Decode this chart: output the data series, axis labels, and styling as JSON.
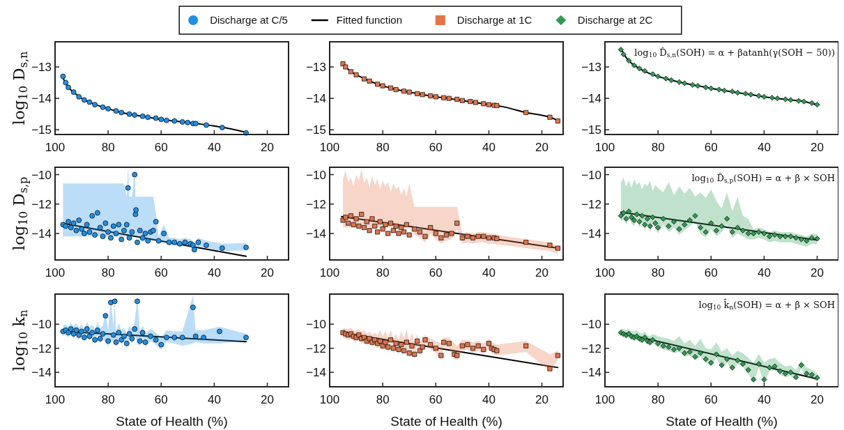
{
  "chart_data": [
    {
      "type": "scatter",
      "ylabel": "log$_{10}$ D$_{s,n}$",
      "xlim": [
        100,
        12
      ],
      "ylim": [
        -15.15,
        -12.2
      ],
      "xticks": [
        100,
        80,
        60,
        40,
        20
      ],
      "yticks": [
        -13,
        -14,
        -15
      ],
      "legend": "top",
      "series": [
        {
          "name": "Discharge at C/5",
          "type": "scatter",
          "marker": "circle",
          "color": "#1f8fe5",
          "x": [
            97,
            96,
            95,
            93,
            91,
            89,
            87,
            85,
            82,
            80,
            77,
            75,
            72,
            70,
            67,
            65,
            62,
            60,
            58,
            55,
            52,
            50,
            48,
            47,
            43,
            37,
            28
          ],
          "values": [
            -13.3,
            -13.5,
            -13.65,
            -13.8,
            -13.95,
            -14.05,
            -14.12,
            -14.2,
            -14.28,
            -14.33,
            -14.4,
            -14.45,
            -14.5,
            -14.53,
            -14.57,
            -14.6,
            -14.63,
            -14.67,
            -14.7,
            -14.72,
            -14.75,
            -14.77,
            -14.8,
            -14.8,
            -14.85,
            -14.93,
            -15.1
          ]
        },
        {
          "name": "Fitted function",
          "type": "line",
          "marker": "none",
          "line_style": "solid",
          "color": "#000000",
          "x": [
            97,
            95,
            93,
            90,
            87,
            84,
            80,
            75,
            70,
            65,
            60,
            55,
            50,
            45,
            40,
            35,
            28
          ],
          "values": [
            -13.35,
            -13.65,
            -13.8,
            -14.0,
            -14.12,
            -14.22,
            -14.33,
            -14.45,
            -14.53,
            -14.6,
            -14.67,
            -14.72,
            -14.77,
            -14.82,
            -14.88,
            -14.95,
            -15.08
          ]
        }
      ]
    },
    {
      "type": "scatter",
      "xlim": [
        100,
        12
      ],
      "ylim": [
        -15.15,
        -12.2
      ],
      "xticks": [
        100,
        80,
        60,
        40,
        20
      ],
      "yticks": [
        -13,
        -14,
        -15
      ],
      "legend": "top",
      "series": [
        {
          "name": "Discharge at 1C",
          "type": "scatter",
          "marker": "square",
          "color": "#e5744a",
          "x": [
            95,
            94,
            92,
            90,
            87,
            85,
            82,
            80,
            77,
            75,
            72,
            70,
            67,
            65,
            62,
            60,
            57,
            55,
            52,
            50,
            47,
            45,
            42,
            40,
            38,
            37,
            26,
            17,
            14
          ],
          "values": [
            -12.9,
            -13.0,
            -13.15,
            -13.25,
            -13.38,
            -13.45,
            -13.55,
            -13.6,
            -13.67,
            -13.72,
            -13.77,
            -13.8,
            -13.85,
            -13.88,
            -13.92,
            -13.95,
            -13.98,
            -14.0,
            -14.03,
            -14.07,
            -14.1,
            -14.13,
            -14.17,
            -14.2,
            -14.22,
            -14.23,
            -14.45,
            -14.6,
            -14.72
          ]
        },
        {
          "name": "Fitted function",
          "type": "line",
          "marker": "none",
          "line_style": "solid",
          "color": "#000000",
          "x": [
            95,
            92,
            88,
            84,
            80,
            75,
            70,
            65,
            60,
            55,
            50,
            45,
            40,
            35,
            26,
            17,
            14
          ],
          "values": [
            -12.9,
            -13.15,
            -13.33,
            -13.48,
            -13.6,
            -13.72,
            -13.8,
            -13.88,
            -13.95,
            -14.0,
            -14.07,
            -14.13,
            -14.2,
            -14.26,
            -14.45,
            -14.6,
            -14.7
          ]
        }
      ]
    },
    {
      "type": "scatter",
      "xlim": [
        100,
        12
      ],
      "ylim": [
        -15.15,
        -12.2
      ],
      "xticks": [
        100,
        80,
        60,
        40,
        20
      ],
      "yticks": [
        -13,
        -14,
        -15
      ],
      "legend": "top",
      "annotations": [
        "log$_{10}$ D̂$_{s,n}$(SOH) = α + βatanh(γ(SOH − 50))"
      ],
      "series": [
        {
          "name": "Discharge at 2C",
          "type": "scatter",
          "marker": "diamond",
          "color": "#2f9a52",
          "x": [
            94,
            93,
            91,
            89,
            87,
            85,
            82,
            80,
            77,
            75,
            72,
            70,
            67,
            65,
            62,
            60,
            57,
            55,
            52,
            50,
            47,
            45,
            42,
            40,
            37,
            35,
            32,
            30,
            27,
            25,
            22,
            20
          ],
          "values": [
            -12.45,
            -12.6,
            -12.8,
            -12.95,
            -13.05,
            -13.13,
            -13.23,
            -13.3,
            -13.37,
            -13.42,
            -13.48,
            -13.52,
            -13.57,
            -13.6,
            -13.65,
            -13.68,
            -13.72,
            -13.75,
            -13.78,
            -13.82,
            -13.85,
            -13.88,
            -13.92,
            -13.95,
            -13.98,
            -14.0,
            -14.03,
            -14.05,
            -14.08,
            -14.1,
            -14.15,
            -14.2
          ]
        },
        {
          "name": "Fitted function",
          "type": "line",
          "marker": "none",
          "line_style": "solid",
          "color": "#000000",
          "x": [
            94,
            92,
            90,
            87,
            84,
            80,
            75,
            70,
            65,
            60,
            55,
            50,
            45,
            40,
            35,
            30,
            25,
            20
          ],
          "values": [
            -12.42,
            -12.7,
            -12.88,
            -13.05,
            -13.18,
            -13.3,
            -13.42,
            -13.52,
            -13.6,
            -13.68,
            -13.75,
            -13.82,
            -13.88,
            -13.95,
            -14.0,
            -14.05,
            -14.1,
            -14.2
          ]
        }
      ]
    },
    {
      "type": "scatter",
      "ylabel": "log$_{10}$ D$_{s,p}$",
      "xlim": [
        100,
        12
      ],
      "ylim": [
        -15.8,
        -9.5
      ],
      "xticks": [
        100,
        80,
        60,
        40,
        20
      ],
      "yticks": [
        -10,
        -12,
        -14
      ],
      "legend": "top",
      "series": [
        {
          "name": "Discharge at C/5",
          "type": "scatter",
          "marker": "circle",
          "color": "#1f8fe5",
          "x": [
            97,
            96,
            95,
            94,
            93,
            92,
            91,
            90,
            89,
            88,
            87,
            86,
            85,
            84,
            83,
            82,
            81,
            80,
            79,
            78,
            77,
            76,
            75,
            74,
            73,
            72.5,
            72,
            71,
            70,
            69.7,
            69.5,
            69,
            68,
            67,
            66,
            65,
            64,
            63,
            62,
            61,
            59,
            57,
            55,
            53,
            51,
            49,
            48,
            47.5,
            46,
            43,
            37,
            28
          ],
          "values": [
            -13.4,
            -13.5,
            -13.2,
            -13.6,
            -13.3,
            -13.8,
            -13.1,
            -13.7,
            -14.0,
            -13.4,
            -13.9,
            -12.8,
            -14.1,
            -12.6,
            -13.6,
            -14.2,
            -13.3,
            -13.9,
            -14.3,
            -13.5,
            -14.0,
            -13.4,
            -14.4,
            -13.8,
            -13.4,
            -10.9,
            -14.3,
            -13.9,
            -10.0,
            -12.7,
            -12.4,
            -14.6,
            -13.8,
            -14.3,
            -14.0,
            -14.5,
            -13.9,
            -13.8,
            -13.2,
            -14.5,
            -14.0,
            -14.6,
            -14.6,
            -14.7,
            -14.6,
            -14.7,
            -14.8,
            -15.1,
            -14.6,
            -14.8,
            -15.0,
            -14.95
          ],
          "upper": [
            -10.6,
            -10.6,
            -10.6,
            -10.6,
            -10.6,
            -10.6,
            -10.6,
            -10.6,
            -10.6,
            -10.6,
            -10.6,
            -10.6,
            -10.6,
            -10.6,
            -10.6,
            -10.6,
            -10.6,
            -10.6,
            -10.6,
            -10.6,
            -10.6,
            -10.6,
            -10.6,
            -10.6,
            -11.5,
            -9.5,
            -11.5,
            -11.5,
            -9.5,
            -11.5,
            -11.5,
            -11.5,
            -11.5,
            -11.5,
            -11.5,
            -11.5,
            -11.5,
            -11.5,
            -12.6,
            -14.2,
            -13.4,
            -14.3,
            -14.3,
            -14.4,
            -14.3,
            -14.4,
            -14.5,
            -14.7,
            -14.3,
            -14.5,
            -14.7,
            -14.65
          ],
          "lower": [
            -14.2,
            -14.2,
            -14.2,
            -14.2,
            -14.2,
            -14.2,
            -14.2,
            -14.2,
            -14.2,
            -14.2,
            -14.2,
            -14.2,
            -14.2,
            -14.2,
            -14.2,
            -14.2,
            -14.2,
            -14.2,
            -14.2,
            -14.2,
            -14.2,
            -14.2,
            -14.2,
            -14.2,
            -14.2,
            -14.2,
            -14.2,
            -14.2,
            -14.2,
            -14.2,
            -14.2,
            -14.2,
            -14.4,
            -14.6,
            -14.5,
            -14.7,
            -14.5,
            -14.5,
            -14.5,
            -14.7,
            -14.6,
            -14.8,
            -14.8,
            -14.9,
            -14.8,
            -14.9,
            -15.0,
            -15.2,
            -14.9,
            -15.0,
            -15.2,
            -15.15
          ]
        },
        {
          "name": "Fitted function",
          "type": "line",
          "marker": "none",
          "line_style": "solid",
          "color": "#000000",
          "x": [
            97.5,
            28
          ],
          "values": [
            -13.3,
            -15.55
          ]
        }
      ]
    },
    {
      "type": "scatter",
      "xlim": [
        100,
        12
      ],
      "ylim": [
        -15.8,
        -9.5
      ],
      "xticks": [
        100,
        80,
        60,
        40,
        20
      ],
      "yticks": [
        -10,
        -12,
        -14
      ],
      "legend": "top",
      "series": [
        {
          "name": "Discharge at 1C",
          "type": "scatter",
          "marker": "square",
          "color": "#e5744a",
          "x": [
            95,
            94,
            93,
            92,
            91,
            90,
            89,
            88,
            87,
            86,
            85,
            84,
            83,
            82,
            81,
            80,
            79,
            78,
            77,
            76,
            75,
            74,
            73,
            72,
            71,
            70,
            68,
            66,
            64,
            62,
            60,
            58,
            56,
            54,
            52,
            50,
            48,
            46,
            44,
            42,
            40,
            38,
            37,
            26,
            17,
            14
          ],
          "values": [
            -13.1,
            -12.9,
            -13.3,
            -12.8,
            -13.4,
            -13.0,
            -13.5,
            -12.7,
            -13.6,
            -13.2,
            -13.8,
            -13.0,
            -13.5,
            -13.9,
            -13.2,
            -13.7,
            -13.4,
            -14.0,
            -13.3,
            -13.8,
            -13.5,
            -14.0,
            -13.6,
            -13.9,
            -13.4,
            -14.1,
            -13.7,
            -13.9,
            -14.2,
            -13.6,
            -14.0,
            -14.3,
            -14.1,
            -14.0,
            -13.3,
            -14.3,
            -14.2,
            -14.3,
            -14.2,
            -14.2,
            -14.3,
            -14.3,
            -14.35,
            -14.6,
            -14.8,
            -15.0
          ],
          "upper": [
            -10.3,
            -9.7,
            -10.5,
            -10.2,
            -10.8,
            -10.0,
            -10.4,
            -9.6,
            -10.6,
            -10.2,
            -10.9,
            -10.1,
            -10.7,
            -10.3,
            -11.0,
            -10.4,
            -10.8,
            -10.5,
            -11.2,
            -10.6,
            -11.0,
            -10.8,
            -11.4,
            -10.9,
            -11.5,
            -10.6,
            -12.2,
            -12.2,
            -12.2,
            -12.2,
            -12.2,
            -12.2,
            -12.2,
            -12.2,
            -12.2,
            -14.0,
            -13.9,
            -14.0,
            -13.9,
            -13.9,
            -14.0,
            -14.0,
            -14.1,
            -14.4,
            -14.6,
            -14.85
          ],
          "lower": [
            -13.6,
            -13.6,
            -13.6,
            -13.6,
            -13.6,
            -13.6,
            -13.6,
            -13.6,
            -13.6,
            -13.6,
            -13.6,
            -13.6,
            -13.6,
            -13.6,
            -13.6,
            -13.6,
            -13.6,
            -13.6,
            -13.6,
            -13.6,
            -13.6,
            -13.6,
            -13.6,
            -13.6,
            -13.6,
            -13.6,
            -14.1,
            -14.3,
            -14.6,
            -14.0,
            -14.4,
            -14.7,
            -14.5,
            -14.4,
            -13.7,
            -14.7,
            -14.6,
            -14.7,
            -14.6,
            -14.6,
            -14.7,
            -14.7,
            -14.75,
            -15.0,
            -15.2,
            -15.4
          ]
        },
        {
          "name": "Fitted function",
          "type": "line",
          "marker": "none",
          "line_style": "solid",
          "color": "#000000",
          "x": [
            95.5,
            14
          ],
          "values": [
            -12.85,
            -15.0
          ]
        }
      ]
    },
    {
      "type": "scatter",
      "xlim": [
        100,
        12
      ],
      "ylim": [
        -15.8,
        -9.5
      ],
      "xticks": [
        100,
        80,
        60,
        40,
        20
      ],
      "yticks": [
        -10,
        -12,
        -14
      ],
      "legend": "top",
      "annotations": [
        "log$_{10}$ D̂$_{s,p}$(SOH) = α + β × SOH"
      ],
      "series": [
        {
          "name": "Discharge at 2C",
          "type": "scatter",
          "marker": "diamond",
          "color": "#2f9a52",
          "x": [
            94,
            93,
            92,
            91,
            90,
            89,
            88,
            87,
            86,
            85,
            84,
            83,
            82,
            81,
            80,
            78,
            76,
            74,
            72,
            70,
            68,
            66,
            64,
            62,
            60,
            58,
            56,
            54,
            52,
            50,
            48,
            46,
            44,
            42,
            40,
            38,
            36,
            34,
            32,
            30,
            28,
            26,
            24,
            22,
            20
          ],
          "values": [
            -12.8,
            -12.6,
            -13.0,
            -12.5,
            -12.9,
            -13.1,
            -12.7,
            -13.2,
            -12.8,
            -13.4,
            -13.0,
            -13.5,
            -12.9,
            -13.3,
            -13.6,
            -13.0,
            -13.5,
            -13.2,
            -13.7,
            -13.4,
            -13.1,
            -12.8,
            -13.6,
            -13.9,
            -13.3,
            -13.8,
            -13.5,
            -13.0,
            -13.9,
            -13.6,
            -13.8,
            -14.0,
            -14.0,
            -13.9,
            -14.0,
            -14.2,
            -14.1,
            -14.2,
            -14.2,
            -14.2,
            -14.3,
            -14.4,
            -14.5,
            -14.3,
            -14.35
          ],
          "upper": [
            -10.6,
            -10.2,
            -10.8,
            -10.4,
            -10.9,
            -10.3,
            -10.7,
            -10.5,
            -11.0,
            -10.6,
            -10.8,
            -10.4,
            -11.1,
            -10.7,
            -10.9,
            -11.2,
            -10.5,
            -11.4,
            -10.8,
            -11.3,
            -10.9,
            -11.5,
            -11.2,
            -11.6,
            -11.0,
            -11.8,
            -12.3,
            -11.2,
            -12.5,
            -11.5,
            -12.8,
            -13.0,
            -13.7,
            -13.6,
            -13.7,
            -13.9,
            -13.8,
            -13.9,
            -13.9,
            -13.9,
            -14.0,
            -14.1,
            -14.2,
            -14.0,
            -14.05
          ],
          "lower": [
            -13.2,
            -13.0,
            -13.4,
            -12.9,
            -13.3,
            -13.5,
            -13.1,
            -13.6,
            -13.2,
            -13.8,
            -13.4,
            -13.9,
            -13.3,
            -13.7,
            -14.0,
            -13.4,
            -13.9,
            -13.6,
            -14.1,
            -13.8,
            -13.5,
            -13.2,
            -14.0,
            -14.3,
            -13.7,
            -14.2,
            -13.9,
            -13.4,
            -14.3,
            -14.0,
            -14.2,
            -14.4,
            -14.4,
            -14.3,
            -14.4,
            -14.6,
            -14.5,
            -14.6,
            -14.6,
            -14.6,
            -14.7,
            -14.8,
            -14.9,
            -14.7,
            -14.75
          ]
        },
        {
          "name": "Fitted function",
          "type": "line",
          "marker": "none",
          "line_style": "solid",
          "color": "#000000",
          "x": [
            94,
            20
          ],
          "values": [
            -12.55,
            -14.45
          ]
        }
      ]
    },
    {
      "type": "scatter",
      "ylabel": "log$_{10}$ k$_{n}$",
      "xlabel": "State of Health (%)",
      "xlim": [
        100,
        12
      ],
      "ylim": [
        -15.2,
        -7.5
      ],
      "xticks": [
        100,
        80,
        60,
        40,
        20
      ],
      "yticks": [
        -10,
        -12,
        -14
      ],
      "legend": "top",
      "series": [
        {
          "name": "Discharge at C/5",
          "type": "scatter",
          "marker": "circle",
          "color": "#1f8fe5",
          "x": [
            97,
            96,
            95,
            94,
            93,
            92,
            91,
            90,
            89,
            88,
            87,
            86,
            85,
            84,
            83,
            82,
            81,
            80,
            79,
            78,
            77.5,
            77,
            76,
            75,
            74,
            73,
            72,
            71,
            70,
            69,
            68,
            67,
            66,
            64,
            62,
            60,
            58,
            55,
            52,
            48,
            47,
            44,
            38,
            28
          ],
          "values": [
            -10.6,
            -10.5,
            -10.7,
            -10.4,
            -10.8,
            -10.5,
            -10.9,
            -10.6,
            -11.1,
            -10.4,
            -11.0,
            -10.7,
            -11.3,
            -10.5,
            -11.2,
            -10.8,
            -9.3,
            -11.4,
            -8.2,
            -10.9,
            -8.1,
            -11.5,
            -10.7,
            -11.3,
            -11.0,
            -11.6,
            -10.8,
            -11.2,
            -10.4,
            -8.1,
            -11.4,
            -10.7,
            -11.5,
            -11.0,
            -11.3,
            -11.7,
            -11.1,
            -11.1,
            -11.1,
            -8.6,
            -11.0,
            -11.1,
            -10.6,
            -11.1
          ],
          "upper": [
            -10.1,
            -10.0,
            -10.2,
            -9.9,
            -10.2,
            -9.9,
            -10.3,
            -10.0,
            -10.4,
            -9.8,
            -10.3,
            -10.0,
            -10.5,
            -9.8,
            -10.4,
            -10.1,
            -9.0,
            -10.5,
            -7.9,
            -10.1,
            -7.8,
            -10.6,
            -9.9,
            -10.5,
            -10.3,
            -10.8,
            -10.1,
            -10.5,
            -9.8,
            -7.8,
            -10.6,
            -10.1,
            -10.8,
            -10.4,
            -10.7,
            -11.1,
            -10.5,
            -10.6,
            -10.6,
            -7.6,
            -10.5,
            -10.5,
            -10.2,
            -10.8
          ],
          "lower": [
            -11.0,
            -10.9,
            -11.1,
            -10.8,
            -11.2,
            -10.9,
            -11.3,
            -11.0,
            -11.5,
            -10.8,
            -11.4,
            -11.1,
            -11.7,
            -10.9,
            -11.6,
            -11.2,
            -11.5,
            -11.8,
            -11.5,
            -11.3,
            -11.6,
            -11.9,
            -11.1,
            -11.7,
            -11.4,
            -12.0,
            -11.2,
            -11.6,
            -10.8,
            -11.7,
            -11.8,
            -11.1,
            -11.9,
            -11.4,
            -11.7,
            -12.1,
            -11.5,
            -11.6,
            -11.8,
            -11.6,
            -11.5,
            -11.6,
            -11.6,
            -11.4
          ]
        },
        {
          "name": "Fitted function",
          "type": "line",
          "marker": "none",
          "line_style": "solid",
          "color": "#000000",
          "x": [
            97,
            28
          ],
          "values": [
            -10.6,
            -11.45
          ]
        }
      ]
    },
    {
      "type": "scatter",
      "xlabel": "State of Health (%)",
      "xlim": [
        100,
        12
      ],
      "ylim": [
        -15.2,
        -7.5
      ],
      "xticks": [
        100,
        80,
        60,
        40,
        20
      ],
      "yticks": [
        -10,
        -12,
        -14
      ],
      "legend": "top",
      "series": [
        {
          "name": "Discharge at 1C",
          "type": "scatter",
          "marker": "square",
          "color": "#e5744a",
          "x": [
            95,
            94,
            93,
            92,
            91,
            90,
            89,
            88,
            87,
            86,
            85,
            84,
            83,
            82,
            81,
            80,
            79,
            78,
            77,
            76,
            75,
            74,
            73,
            72,
            71,
            70,
            69,
            68,
            67,
            66,
            65,
            64,
            62,
            60,
            58,
            57,
            55,
            53,
            52,
            50,
            48,
            46,
            44,
            42,
            40,
            39,
            38,
            37,
            26,
            17,
            14
          ],
          "values": [
            -10.7,
            -10.8,
            -10.9,
            -10.8,
            -11.0,
            -11.1,
            -10.9,
            -11.2,
            -11.1,
            -11.4,
            -11.2,
            -11.5,
            -11.3,
            -11.6,
            -11.4,
            -11.8,
            -11.5,
            -11.9,
            -11.3,
            -12.0,
            -11.6,
            -12.1,
            -11.7,
            -12.2,
            -11.5,
            -12.4,
            -11.8,
            -12.5,
            -11.4,
            -12.2,
            -11.9,
            -11.3,
            -11.7,
            -12.0,
            -12.6,
            -11.5,
            -11.6,
            -12.5,
            -12.6,
            -11.8,
            -11.7,
            -12.0,
            -11.8,
            -12.1,
            -11.6,
            -12.0,
            -12.1,
            -12.2,
            -11.8,
            -13.7,
            -12.6
          ],
          "upper": [
            -10.3,
            -10.4,
            -10.4,
            -10.3,
            -10.5,
            -10.5,
            -10.4,
            -10.6,
            -10.5,
            -10.8,
            -10.6,
            -10.9,
            -10.7,
            -10.9,
            -10.5,
            -11.0,
            -10.6,
            -11.1,
            -10.5,
            -11.2,
            -10.8,
            -11.3,
            -10.6,
            -11.2,
            -10.4,
            -11.4,
            -10.7,
            -11.5,
            -10.8,
            -11.5,
            -11.2,
            -10.9,
            -11.2,
            -11.4,
            -11.6,
            -11.1,
            -11.1,
            -11.6,
            -11.8,
            -11.3,
            -11.3,
            -11.5,
            -11.4,
            -11.6,
            -11.2,
            -11.5,
            -11.6,
            -11.7,
            -11.4,
            -12.5,
            -12.2
          ],
          "lower": [
            -11.1,
            -11.2,
            -11.3,
            -11.2,
            -11.4,
            -11.5,
            -11.3,
            -11.6,
            -11.5,
            -11.8,
            -11.6,
            -11.9,
            -11.7,
            -12.0,
            -11.8,
            -12.2,
            -11.9,
            -12.3,
            -11.7,
            -12.4,
            -12.0,
            -12.5,
            -12.1,
            -12.6,
            -11.9,
            -12.8,
            -12.2,
            -12.9,
            -11.8,
            -12.6,
            -12.3,
            -11.7,
            -12.1,
            -12.4,
            -13.0,
            -11.9,
            -12.0,
            -12.9,
            -13.0,
            -12.2,
            -12.1,
            -12.4,
            -12.2,
            -12.5,
            -12.0,
            -12.4,
            -12.5,
            -12.6,
            -12.3,
            -13.9,
            -13.0
          ]
        },
        {
          "name": "Fitted function",
          "type": "line",
          "marker": "none",
          "line_style": "solid",
          "color": "#000000",
          "x": [
            95.5,
            14
          ],
          "values": [
            -10.7,
            -13.6
          ]
        }
      ]
    },
    {
      "type": "scatter",
      "xlabel": "State of Health (%)",
      "xlim": [
        100,
        12
      ],
      "ylim": [
        -15.2,
        -7.5
      ],
      "xticks": [
        100,
        80,
        60,
        40,
        20
      ],
      "yticks": [
        -10,
        -12,
        -14
      ],
      "legend": "top",
      "annotations": [
        "log$_{10}$ k̂$_{n}$(SOH) = α + β × SOH"
      ],
      "series": [
        {
          "name": "Discharge at 2C",
          "type": "scatter",
          "marker": "diamond",
          "color": "#2f9a52",
          "x": [
            94,
            93,
            92,
            91,
            90,
            89,
            88,
            87,
            86,
            85,
            84,
            83,
            82,
            80,
            78,
            76,
            74,
            72,
            70,
            68,
            66,
            64,
            62,
            60,
            58,
            56,
            54,
            52,
            50,
            48,
            46,
            44,
            42,
            40,
            38,
            36,
            34,
            32,
            30,
            28,
            26,
            24,
            22,
            20
          ],
          "values": [
            -10.7,
            -10.8,
            -10.9,
            -10.8,
            -11.0,
            -11.1,
            -11.0,
            -11.2,
            -11.3,
            -11.1,
            -11.4,
            -11.5,
            -11.3,
            -11.6,
            -11.8,
            -11.9,
            -12.1,
            -12.0,
            -12.4,
            -12.3,
            -12.7,
            -12.4,
            -12.9,
            -13.2,
            -12.5,
            -13.4,
            -12.9,
            -13.6,
            -13.0,
            -13.3,
            -13.8,
            -14.6,
            -13.3,
            -14.6,
            -13.6,
            -13.5,
            -13.9,
            -14.1,
            -14.0,
            -14.4,
            -13.4,
            -14.1,
            -14.2,
            -14.45
          ],
          "upper": [
            -10.4,
            -10.4,
            -10.5,
            -10.4,
            -10.6,
            -10.6,
            -10.5,
            -10.7,
            -10.8,
            -10.6,
            -10.9,
            -11.0,
            -10.8,
            -11.0,
            -11.1,
            -11.2,
            -11.4,
            -11.0,
            -11.6,
            -11.3,
            -11.8,
            -11.2,
            -12.0,
            -12.1,
            -11.5,
            -12.3,
            -12.0,
            -12.6,
            -12.2,
            -12.4,
            -12.8,
            -13.2,
            -12.5,
            -13.2,
            -12.9,
            -12.8,
            -13.2,
            -13.5,
            -13.4,
            -13.8,
            -13.0,
            -13.6,
            -13.8,
            -14.1
          ],
          "lower": [
            -11.0,
            -11.1,
            -11.2,
            -11.1,
            -11.3,
            -11.4,
            -11.3,
            -11.5,
            -11.6,
            -11.4,
            -11.7,
            -11.8,
            -11.6,
            -11.9,
            -12.1,
            -12.2,
            -12.4,
            -12.3,
            -12.7,
            -12.6,
            -13.0,
            -12.7,
            -13.2,
            -13.5,
            -12.8,
            -13.7,
            -13.2,
            -13.9,
            -13.3,
            -13.6,
            -14.1,
            -14.9,
            -13.6,
            -14.9,
            -13.9,
            -13.8,
            -14.2,
            -14.4,
            -14.3,
            -14.7,
            -13.7,
            -14.4,
            -14.5,
            -14.75
          ]
        },
        {
          "name": "Fitted function",
          "type": "line",
          "marker": "none",
          "line_style": "solid",
          "color": "#000000",
          "x": [
            94,
            20
          ],
          "values": [
            -10.7,
            -14.55
          ]
        }
      ]
    }
  ]
}
